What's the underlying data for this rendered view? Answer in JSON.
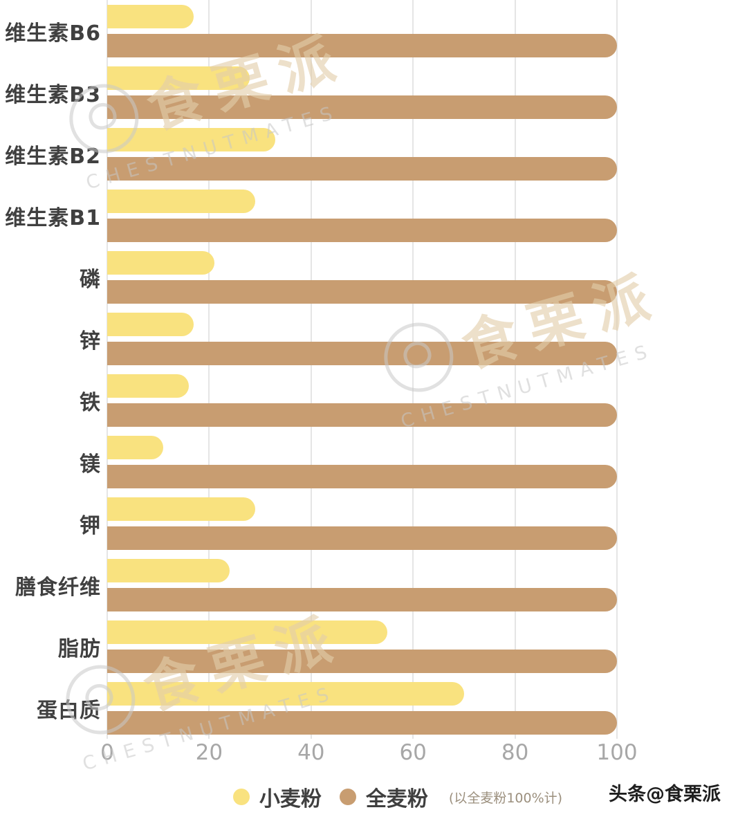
{
  "chart_data": {
    "type": "bar",
    "orientation": "horizontal",
    "title": "",
    "xlabel": "",
    "ylabel": "",
    "xlim": [
      0,
      100
    ],
    "x_ticks": [
      0,
      20,
      40,
      60,
      80,
      100
    ],
    "grid": true,
    "legend_position": "bottom",
    "note": "(以全麦粉100%计)",
    "categories": [
      "维生素B6",
      "维生素B3",
      "维生素B2",
      "维生素B1",
      "磷",
      "锌",
      "铁",
      "镁",
      "钾",
      "膳食纤维",
      "脂肪",
      "蛋白质"
    ],
    "series": [
      {
        "name": "小麦粉",
        "color": "#F9E27F",
        "values": [
          17,
          28,
          33,
          29,
          21,
          17,
          16,
          11,
          29,
          24,
          55,
          70
        ]
      },
      {
        "name": "全麦粉",
        "color": "#C89D71",
        "values": [
          100,
          100,
          100,
          100,
          100,
          100,
          100,
          100,
          100,
          100,
          100,
          100
        ]
      }
    ]
  },
  "watermark": {
    "brand": "食栗派",
    "subtitle": "CHESTNUTMATES"
  },
  "footer": {
    "credit": "头条@食栗派"
  }
}
